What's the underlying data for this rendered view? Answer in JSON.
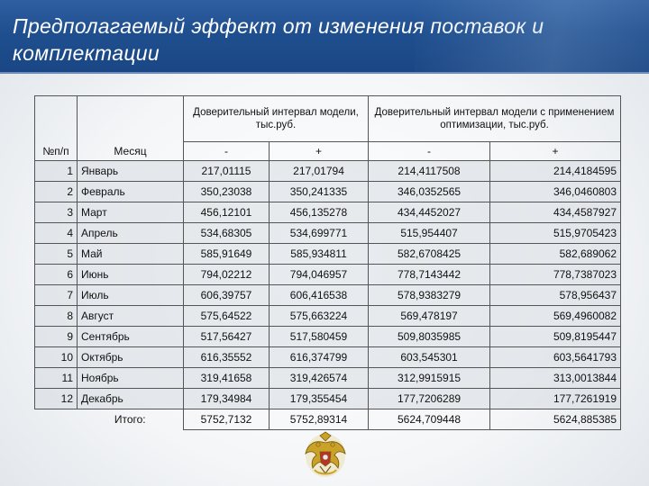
{
  "title": "Предполагаемый эффект от изменения поставок и комплектации",
  "header": {
    "col_no": "№п/п",
    "col_month": "Месяц",
    "group_model": "Доверительный интервал модели, тыс.руб.",
    "group_opt": "Доверительный интервал модели с применением оптимизации, тыс.руб.",
    "minus": "-",
    "plus": "+"
  },
  "rows": [
    {
      "n": "1",
      "month": "Январь",
      "a": "217,01115",
      "b": "217,01794",
      "c": "214,4117508",
      "d": "214,4184595"
    },
    {
      "n": "2",
      "month": "Февраль",
      "a": "350,23038",
      "b": "350,241335",
      "c": "346,0352565",
      "d": "346,0460803"
    },
    {
      "n": "3",
      "month": "Март",
      "a": "456,12101",
      "b": "456,135278",
      "c": "434,4452027",
      "d": "434,4587927"
    },
    {
      "n": "4",
      "month": "Апрель",
      "a": "534,68305",
      "b": "534,699771",
      "c": "515,954407",
      "d": "515,9705423"
    },
    {
      "n": "5",
      "month": "Май",
      "a": "585,91649",
      "b": "585,934811",
      "c": "582,6708425",
      "d": "582,689062"
    },
    {
      "n": "6",
      "month": "Июнь",
      "a": "794,02212",
      "b": "794,046957",
      "c": "778,7143442",
      "d": "778,7387023"
    },
    {
      "n": "7",
      "month": "Июль",
      "a": "606,39757",
      "b": "606,416538",
      "c": "578,9383279",
      "d": "578,956437"
    },
    {
      "n": "8",
      "month": "Август",
      "a": "575,64522",
      "b": "575,663224",
      "c": "569,478197",
      "d": "569,4960082"
    },
    {
      "n": "9",
      "month": "Сентябрь",
      "a": "517,56427",
      "b": "517,580459",
      "c": "509,8035985",
      "d": "509,8195447"
    },
    {
      "n": "10",
      "month": "Октябрь",
      "a": "616,35552",
      "b": "616,374799",
      "c": "603,545301",
      "d": "603,5641793"
    },
    {
      "n": "11",
      "month": "Ноябрь",
      "a": "319,41658",
      "b": "319,426574",
      "c": "312,9915915",
      "d": "313,0013844"
    },
    {
      "n": "12",
      "month": "Декабрь",
      "a": "179,34984",
      "b": "179,355454",
      "c": "177,7206289",
      "d": "177,7261919"
    }
  ],
  "total": {
    "label": "Итого:",
    "a": "5752,7132",
    "b": "5752,89314",
    "c": "5624,709448",
    "d": "5624,885385"
  },
  "colors": {
    "title_bar": "#1f4f8f",
    "row_shade": "#d6dae0",
    "emblem_gold": "#c9a227"
  },
  "emblem_icon": "double-headed-eagle-emblem"
}
